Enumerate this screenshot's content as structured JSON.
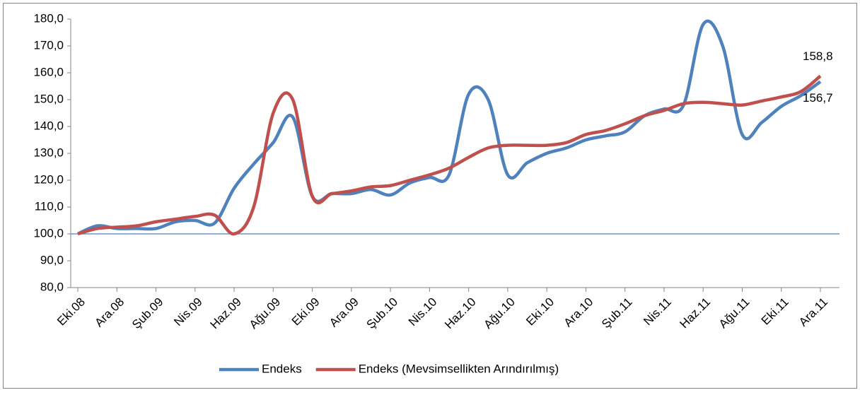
{
  "chart_data": {
    "type": "line",
    "categories": [
      "Eki.08",
      null,
      "Ara.08",
      null,
      "Şub.09",
      null,
      "Nis.09",
      null,
      "Haz.09",
      null,
      "Ağu.09",
      null,
      "Eki.09",
      null,
      "Ara.09",
      null,
      "Şub.10",
      null,
      "Nis.10",
      null,
      "Haz.10",
      null,
      "Ağu.10",
      null,
      "Eki.10",
      null,
      "Ara.10",
      null,
      "Şub.11",
      null,
      "Nis.11",
      null,
      "Haz.11",
      null,
      "Ağu.11",
      null,
      "Eki.11",
      null,
      "Ara.11"
    ],
    "series": [
      {
        "name": "Endeks",
        "color": "#4f81bd",
        "values": [
          100,
          103,
          102,
          102,
          102,
          104.5,
          105,
          104,
          117,
          126,
          134,
          143.5,
          114,
          115,
          115,
          116.5,
          114.5,
          119,
          121,
          122,
          152,
          150,
          122,
          126.5,
          130,
          132,
          135,
          136.5,
          138,
          144,
          146.5,
          148,
          178,
          170,
          137,
          141.5,
          147.5,
          151.5,
          156.7
        ],
        "value_labels": [
          null,
          null,
          null,
          null,
          null,
          null,
          null,
          null,
          null,
          null,
          null,
          null,
          null,
          null,
          null,
          null,
          null,
          null,
          null,
          null,
          null,
          null,
          null,
          null,
          null,
          null,
          null,
          null,
          null,
          null,
          null,
          null,
          null,
          null,
          null,
          null,
          null,
          null,
          "156,7"
        ]
      },
      {
        "name": "Endeks (Mevsimsellikten Arındırılmış)",
        "color": "#c0504d",
        "values": [
          100,
          102,
          102.5,
          103,
          104.5,
          105.5,
          106.5,
          107,
          100,
          110,
          145,
          150,
          114,
          115,
          116,
          117.5,
          118,
          120,
          122,
          124.5,
          128.5,
          132,
          133,
          133,
          133,
          134,
          137,
          138.5,
          141,
          144,
          146,
          148.5,
          149,
          148.5,
          148,
          149.5,
          151,
          153,
          158.8
        ],
        "value_labels": [
          null,
          null,
          null,
          null,
          null,
          null,
          null,
          null,
          null,
          null,
          null,
          null,
          null,
          null,
          null,
          null,
          null,
          null,
          null,
          null,
          null,
          null,
          null,
          null,
          null,
          null,
          null,
          null,
          null,
          null,
          null,
          null,
          null,
          null,
          null,
          null,
          null,
          null,
          "158,8"
        ]
      }
    ],
    "ylim": [
      80,
      180
    ],
    "yticks": [
      {
        "value": 80,
        "label": "80,0"
      },
      {
        "value": 90,
        "label": "90,0"
      },
      {
        "value": 100,
        "label": "100,0"
      },
      {
        "value": 110,
        "label": "110,0"
      },
      {
        "value": 120,
        "label": "120,0"
      },
      {
        "value": 130,
        "label": "130,0"
      },
      {
        "value": 140,
        "label": "140,0"
      },
      {
        "value": 150,
        "label": "150,0"
      },
      {
        "value": 160,
        "label": "160,0"
      },
      {
        "value": 170,
        "label": "170,0"
      },
      {
        "value": 180,
        "label": "180,0"
      }
    ],
    "reference_line": {
      "value": 100,
      "color": "#4f81bd"
    },
    "smooth": true,
    "legend": "bottom"
  }
}
